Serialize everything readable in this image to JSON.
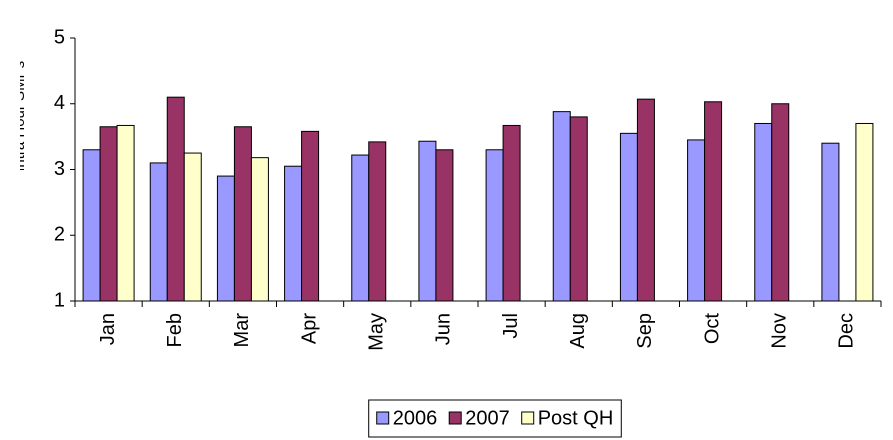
{
  "chart_data": {
    "type": "bar",
    "y_label": "Average No. Of Intra Hour SMPs",
    "categories": [
      "Jan",
      "Feb",
      "Mar",
      "Apr",
      "May",
      "Jun",
      "Jul",
      "Aug",
      "Sep",
      "Oct",
      "Nov",
      "Dec"
    ],
    "series": [
      {
        "name": "2006",
        "color": "#9999ff",
        "values": [
          3.3,
          3.1,
          2.9,
          3.05,
          3.22,
          3.43,
          3.3,
          3.88,
          3.55,
          3.45,
          3.7,
          3.4
        ]
      },
      {
        "name": "2007",
        "color": "#993366",
        "values": [
          3.65,
          4.1,
          3.65,
          3.58,
          3.42,
          3.3,
          3.67,
          3.8,
          4.07,
          4.03,
          4.0,
          null
        ]
      },
      {
        "name": "Post QH",
        "color": "#ffffcc",
        "values": [
          3.67,
          3.25,
          3.18,
          null,
          null,
          null,
          null,
          null,
          null,
          null,
          null,
          3.7
        ]
      }
    ],
    "ylim": [
      1,
      5
    ],
    "yticks": [
      1,
      2,
      3,
      4,
      5
    ],
    "grid": false,
    "legend": "bottom"
  }
}
